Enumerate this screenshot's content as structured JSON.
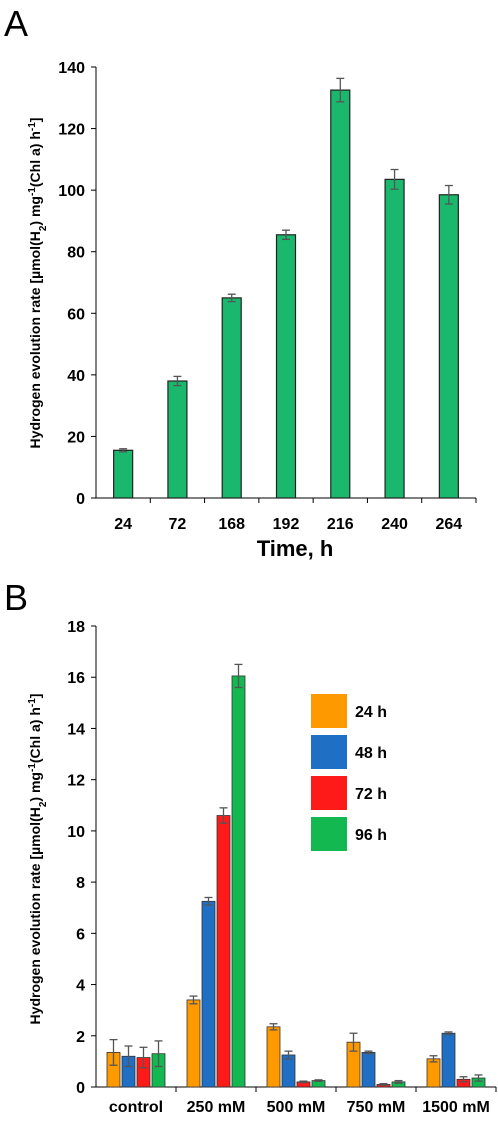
{
  "chart_data": [
    {
      "panel_label": "A",
      "type": "bar",
      "categories": [
        "24",
        "72",
        "168",
        "192",
        "216",
        "240",
        "264"
      ],
      "values": [
        15.5,
        38,
        65,
        85.5,
        132.5,
        103.5,
        98.5
      ],
      "errors": [
        0.5,
        1.5,
        1.2,
        1.5,
        3.8,
        3.2,
        3.0
      ],
      "xlabel": "Time, h",
      "ylabel": "Hydrogen evolution rate [µmol(H₂) mg⁻¹(Chl a) h⁻¹]",
      "ylim": [
        0,
        140
      ],
      "yticks": [
        0,
        20,
        40,
        60,
        80,
        100,
        120,
        140
      ],
      "color": "#1ab86c",
      "grid": false
    },
    {
      "panel_label": "B",
      "type": "bar",
      "categories": [
        "control",
        "250 mM",
        "500 mM",
        "750 mM",
        "1500 mM"
      ],
      "series": [
        {
          "name": "24 h",
          "color": "#ff9900",
          "values": [
            1.35,
            3.4,
            2.35,
            1.75,
            1.1
          ],
          "errors": [
            0.5,
            0.15,
            0.12,
            0.35,
            0.12
          ]
        },
        {
          "name": "48 h",
          "color": "#1f6fc5",
          "values": [
            1.2,
            7.25,
            1.25,
            1.35,
            2.1
          ],
          "errors": [
            0.4,
            0.15,
            0.15,
            0.05,
            0.05
          ]
        },
        {
          "name": "72 h",
          "color": "#ff1a1a",
          "values": [
            1.15,
            10.6,
            0.2,
            0.1,
            0.3
          ],
          "errors": [
            0.4,
            0.3,
            0.03,
            0.03,
            0.1
          ]
        },
        {
          "name": "96 h",
          "color": "#14b850",
          "values": [
            1.3,
            16.05,
            0.25,
            0.2,
            0.35
          ],
          "errors": [
            0.5,
            0.45,
            0.03,
            0.05,
            0.12
          ]
        }
      ],
      "xlabel": "",
      "ylabel": "Hydrogen evolution rate [µmol(H₂) mg⁻¹(Chl a) h⁻¹]",
      "ylim": [
        0,
        18
      ],
      "yticks": [
        0,
        2,
        4,
        6,
        8,
        10,
        12,
        14,
        16,
        18
      ],
      "legend": "upper-right",
      "grid": false
    }
  ]
}
